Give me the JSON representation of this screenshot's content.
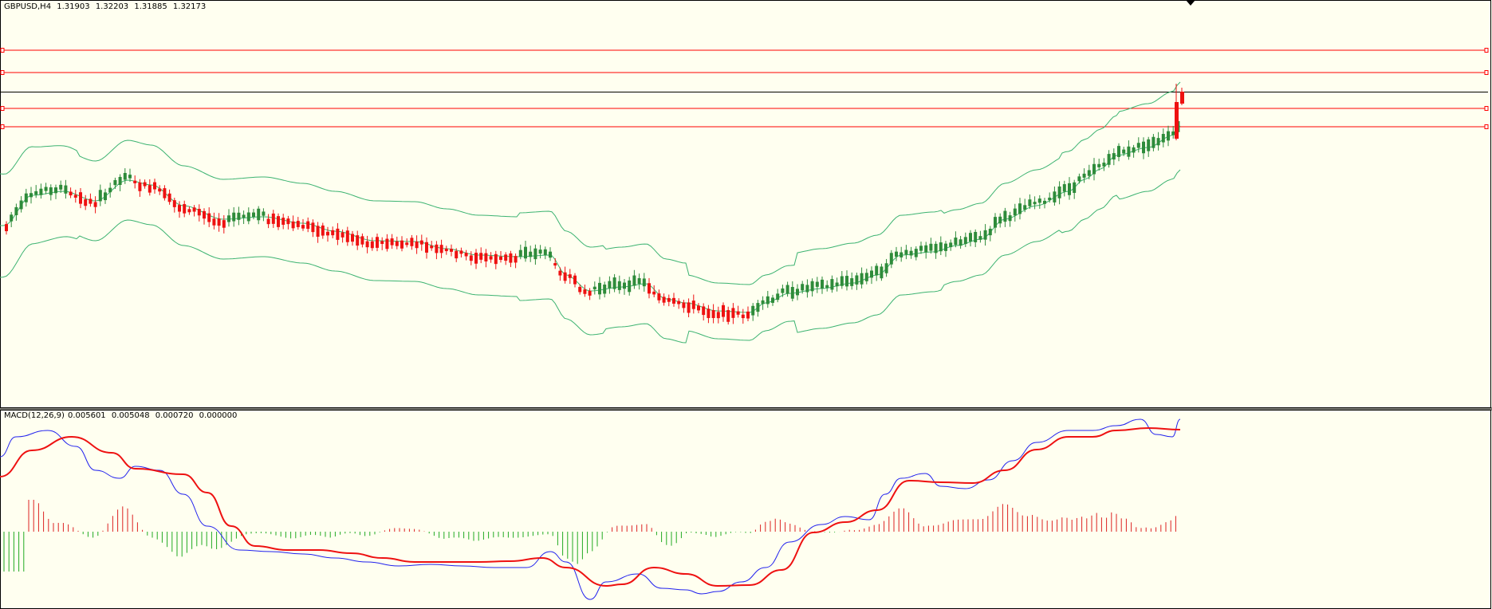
{
  "main_chart": {
    "symbol": "GBPUSD,H4",
    "open": "1.31903",
    "high": "1.32203",
    "low": "1.31885",
    "close": "1.32173"
  },
  "macd_panel": {
    "label": "MACD(12,26,9)",
    "main": "0.005601",
    "signal": "0.005048",
    "histogram": "0.000720",
    "extra": "0.000000"
  },
  "colors": {
    "background": "#fffff0",
    "bull_candle": "#2e8b3a",
    "bear_candle": "#ee1111",
    "bollinger": "#3cb371",
    "level_line": "#ff0000",
    "macd_main": "#2222ee",
    "macd_signal": "#ee1111",
    "hist_up": "#dd2222",
    "hist_down": "#22aa22"
  },
  "chart_data": [
    {
      "type": "line",
      "name": "price",
      "candles_close": [
        0.0,
        0.05,
        0.12,
        0.15,
        0.14,
        0.16,
        0.17,
        0.14,
        0.13,
        0.12,
        0.18,
        0.24,
        0.22,
        0.2,
        0.17,
        0.1,
        0.06,
        0.04,
        0.02,
        0.0,
        -0.01,
        0.0,
        0.01,
        0.0,
        -0.04,
        -0.06,
        -0.05,
        -0.02,
        -0.08,
        -0.11,
        -0.13,
        -0.15,
        -0.16,
        -0.15,
        -0.14,
        -0.15,
        -0.24,
        -0.18,
        -0.17,
        -0.19,
        -0.2,
        -0.19,
        -0.18,
        -0.2,
        -0.19,
        -0.21,
        -0.23,
        -0.32,
        -0.4,
        -0.44,
        -0.36,
        -0.28,
        -0.31,
        -0.34,
        -0.36,
        -0.4,
        -0.48,
        -0.5,
        -0.51,
        -0.5,
        -0.49,
        -0.5,
        -0.47,
        -0.4,
        -0.36,
        -0.35,
        -0.33,
        -0.32,
        -0.3,
        -0.27,
        -0.2,
        -0.16,
        -0.13,
        -0.15,
        -0.17,
        -0.18,
        -0.12,
        -0.09,
        -0.05,
        0.0,
        0.05,
        0.12,
        0.16,
        0.18,
        0.17,
        0.2,
        0.22,
        0.25,
        0.28,
        0.36,
        0.42,
        0.44,
        0.43,
        0.47,
        0.52,
        0.54,
        0.5,
        0.53,
        0.56,
        0.58,
        0.68
      ],
      "bollinger_upper_profile": "follows price envelope",
      "horizontal_levels": 4,
      "current_price_line": true
    },
    {
      "type": "line",
      "name": "MACD(12,26,9)"
    }
  ]
}
